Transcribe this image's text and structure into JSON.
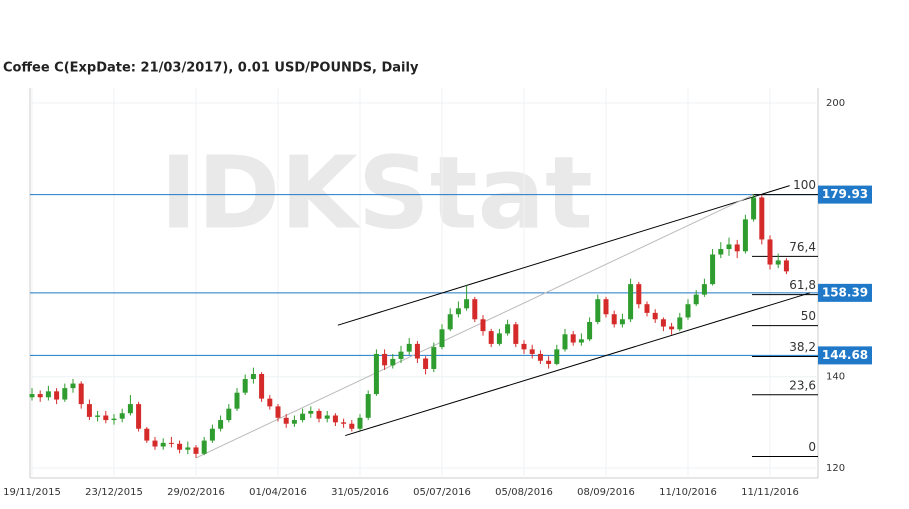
{
  "chart_data": {
    "type": "candlestick",
    "title": "Coffee C(ExpDate: 21/03/2017), 0.01 USD/POUNDS, Daily",
    "watermark": "IDKStat",
    "categories": [
      "19/11/2015",
      null,
      null,
      null,
      null,
      null,
      null,
      null,
      null,
      null,
      "23/12/2015",
      null,
      null,
      null,
      null,
      null,
      null,
      null,
      null,
      null,
      "29/02/2016",
      null,
      null,
      null,
      null,
      null,
      null,
      null,
      null,
      null,
      "01/04/2016",
      null,
      null,
      null,
      null,
      null,
      null,
      null,
      null,
      null,
      "31/05/2016",
      null,
      null,
      null,
      null,
      null,
      null,
      null,
      null,
      null,
      "05/07/2016",
      null,
      null,
      null,
      null,
      null,
      null,
      null,
      null,
      null,
      "05/08/2016",
      null,
      null,
      null,
      null,
      null,
      null,
      null,
      null,
      null,
      "08/09/2016",
      null,
      null,
      null,
      null,
      null,
      null,
      null,
      null,
      null,
      "11/10/2016",
      null,
      null,
      null,
      null,
      null,
      null,
      null,
      null,
      null,
      "11/11/2016",
      null,
      null
    ],
    "open": [
      135.5,
      136.2,
      135.5,
      136.8,
      135.0,
      137.5,
      138.5,
      134.0,
      131.2,
      131.5,
      130.5,
      130.8,
      132.0,
      134.0,
      128.6,
      126.0,
      124.7,
      125.5,
      125.3,
      124.0,
      124.5,
      123.1,
      126.0,
      128.6,
      130.5,
      133.0,
      136.5,
      139.5,
      140.6,
      135.2,
      133.5,
      131.0,
      129.7,
      130.5,
      131.9,
      132.5,
      130.8,
      131.5,
      130.0,
      129.7,
      128.6,
      131.0,
      136.2,
      145.0,
      142.5,
      143.9,
      145.5,
      147.2,
      144.0,
      141.7,
      146.5,
      150.4,
      153.7,
      155.0,
      157.0,
      152.6,
      150.0,
      147.2,
      149.5,
      151.5,
      147.2,
      146.0,
      145.0,
      143.5,
      142.8,
      146.0,
      149.3,
      147.5,
      148.2,
      152.0,
      157.0,
      153.7,
      151.5,
      152.6,
      160.3,
      155.9,
      154.0,
      152.6,
      151.0,
      150.4,
      153.0,
      155.9,
      158.0,
      160.3,
      166.8,
      168.0,
      169.0,
      167.5,
      174.5,
      179.3,
      170.1,
      164.6,
      165.5
    ],
    "high": [
      137.5,
      137.0,
      138.0,
      137.5,
      138.5,
      139.5,
      139.0,
      135.0,
      132.5,
      132.5,
      131.8,
      133.0,
      136.0,
      134.5,
      129.0,
      126.8,
      126.5,
      126.8,
      126.0,
      125.8,
      125.0,
      126.8,
      129.5,
      131.5,
      134.0,
      137.5,
      140.5,
      142.0,
      141.0,
      136.0,
      134.0,
      131.8,
      131.5,
      133.0,
      133.5,
      133.0,
      132.5,
      132.0,
      130.8,
      130.5,
      131.8,
      137.0,
      146.0,
      146.0,
      145.0,
      146.8,
      148.5,
      147.8,
      144.5,
      147.5,
      151.5,
      155.0,
      156.5,
      160.0,
      157.5,
      153.5,
      150.5,
      150.5,
      152.5,
      152.0,
      148.0,
      147.0,
      145.8,
      144.5,
      147.0,
      150.5,
      150.0,
      149.5,
      153.0,
      158.0,
      157.5,
      154.5,
      153.8,
      161.5,
      160.8,
      156.5,
      154.8,
      153.0,
      151.8,
      154.0,
      157.0,
      159.0,
      161.5,
      168.0,
      169.5,
      170.5,
      170.0,
      175.5,
      179.93,
      179.8,
      171.0,
      167.0,
      166.0
    ],
    "low": [
      134.8,
      134.5,
      134.8,
      134.0,
      134.5,
      136.5,
      133.0,
      130.5,
      130.2,
      129.8,
      129.5,
      130.0,
      131.5,
      128.0,
      125.5,
      124.0,
      124.0,
      124.5,
      123.2,
      123.0,
      122.2,
      122.8,
      125.5,
      128.0,
      130.0,
      132.5,
      136.0,
      138.5,
      134.5,
      132.8,
      130.2,
      128.8,
      129.0,
      130.0,
      131.0,
      130.0,
      130.0,
      129.2,
      128.8,
      128.0,
      128.2,
      130.5,
      135.8,
      141.5,
      141.8,
      143.0,
      144.8,
      143.0,
      140.5,
      141.0,
      146.0,
      150.0,
      153.0,
      154.5,
      152.0,
      149.0,
      146.5,
      146.8,
      149.0,
      146.5,
      145.0,
      144.0,
      142.8,
      141.8,
      142.5,
      145.5,
      146.8,
      146.8,
      147.8,
      151.5,
      153.0,
      150.8,
      150.8,
      152.0,
      155.0,
      153.2,
      151.8,
      150.0,
      149.2,
      150.0,
      152.5,
      155.5,
      157.5,
      160.0,
      166.0,
      166.5,
      166.0,
      167.0,
      174.0,
      169.0,
      163.5,
      163.8,
      162.5
    ],
    "close": [
      136.2,
      135.5,
      136.8,
      135.0,
      137.5,
      138.5,
      134.0,
      131.2,
      131.5,
      130.5,
      130.8,
      132.0,
      134.0,
      128.6,
      126.0,
      124.7,
      125.5,
      125.3,
      124.0,
      124.5,
      123.1,
      126.0,
      128.6,
      130.5,
      133.0,
      136.5,
      139.5,
      140.6,
      135.2,
      133.5,
      131.0,
      129.7,
      130.5,
      131.9,
      132.5,
      130.8,
      131.5,
      130.0,
      129.7,
      128.6,
      131.0,
      136.2,
      145.0,
      142.5,
      143.9,
      145.5,
      147.2,
      144.0,
      141.7,
      146.5,
      150.4,
      153.7,
      155.0,
      157.0,
      152.6,
      150.0,
      147.2,
      149.5,
      151.5,
      147.2,
      146.0,
      145.0,
      143.5,
      142.8,
      146.0,
      149.3,
      147.5,
      148.2,
      152.0,
      157.0,
      153.7,
      151.5,
      152.6,
      160.3,
      155.9,
      154.0,
      152.6,
      151.0,
      150.4,
      153.0,
      155.9,
      158.0,
      160.3,
      166.8,
      168.0,
      169.0,
      167.5,
      174.5,
      179.3,
      170.1,
      164.6,
      165.5,
      163.1
    ],
    "up_color": "#2e9c2e",
    "down_color": "#d42a2a",
    "ylim": [
      117.8,
      203.3
    ],
    "yticks": [
      120,
      140,
      200
    ],
    "grid": true,
    "levels": [
      {
        "value": 179.93,
        "label": "179.93"
      },
      {
        "value": 158.39,
        "label": "158.39"
      },
      {
        "value": 144.68,
        "label": "144.68"
      }
    ],
    "level_color": "#1f78c8",
    "fibonacci": [
      {
        "value": 179.93,
        "label": "100"
      },
      {
        "value": 166.4,
        "label": "76,4"
      },
      {
        "value": 158.0,
        "label": "61,8"
      },
      {
        "value": 151.2,
        "label": "50"
      },
      {
        "value": 144.44,
        "label": "38,2"
      },
      {
        "value": 136.05,
        "label": "23,6"
      },
      {
        "value": 122.5,
        "label": "0"
      }
    ],
    "trendlines": [
      {
        "x": [
          37.3,
          92.4
        ],
        "y": [
          151.3,
          181.9
        ],
        "color": "#000000"
      },
      {
        "x": [
          38.2,
          94.9
        ],
        "y": [
          127.1,
          158.4
        ],
        "color": "#000000"
      },
      {
        "x": [
          20,
          88
        ],
        "y": [
          122.2,
          179.93
        ],
        "color": "#bbbbbb"
      }
    ]
  }
}
